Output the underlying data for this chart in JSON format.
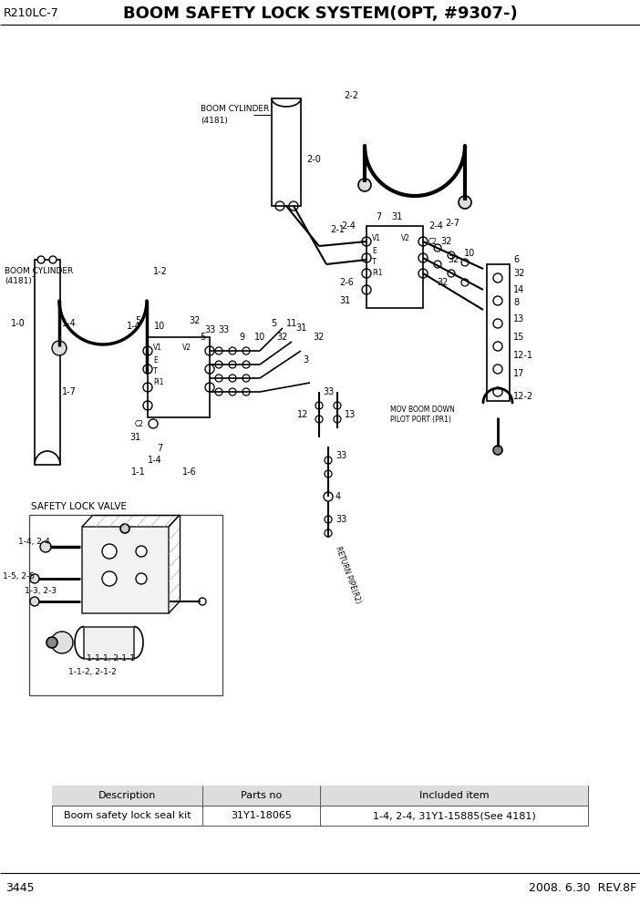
{
  "title_left": "R210LC-7",
  "title_center": "BOOM SAFETY LOCK SYSTEM(OPT, #9307-)",
  "page_number": "3445",
  "date_rev": "2008. 6.30  REV.8F",
  "bg_color": "#ffffff",
  "table_headers": [
    "Description",
    "Parts no",
    "Included item"
  ],
  "table_row": [
    "Boom safety lock seal kit",
    "31Y1-18065",
    "1-4, 2-4, 31Y1-15885(See 4181)"
  ],
  "safety_lock_valve_label": "SAFETY LOCK VALVE",
  "boom_cyl_label_left": [
    "BOOM CYLINDER",
    "(4181)"
  ],
  "boom_cyl_label_top": [
    "BOOM CYLINDER",
    "(4181)"
  ],
  "return_pipe_label": "RETURN PIPE(R2)",
  "mcv_label_1": "MOV BOOM DOWN",
  "mcv_label_2": "PILOT PORT (PR1)"
}
